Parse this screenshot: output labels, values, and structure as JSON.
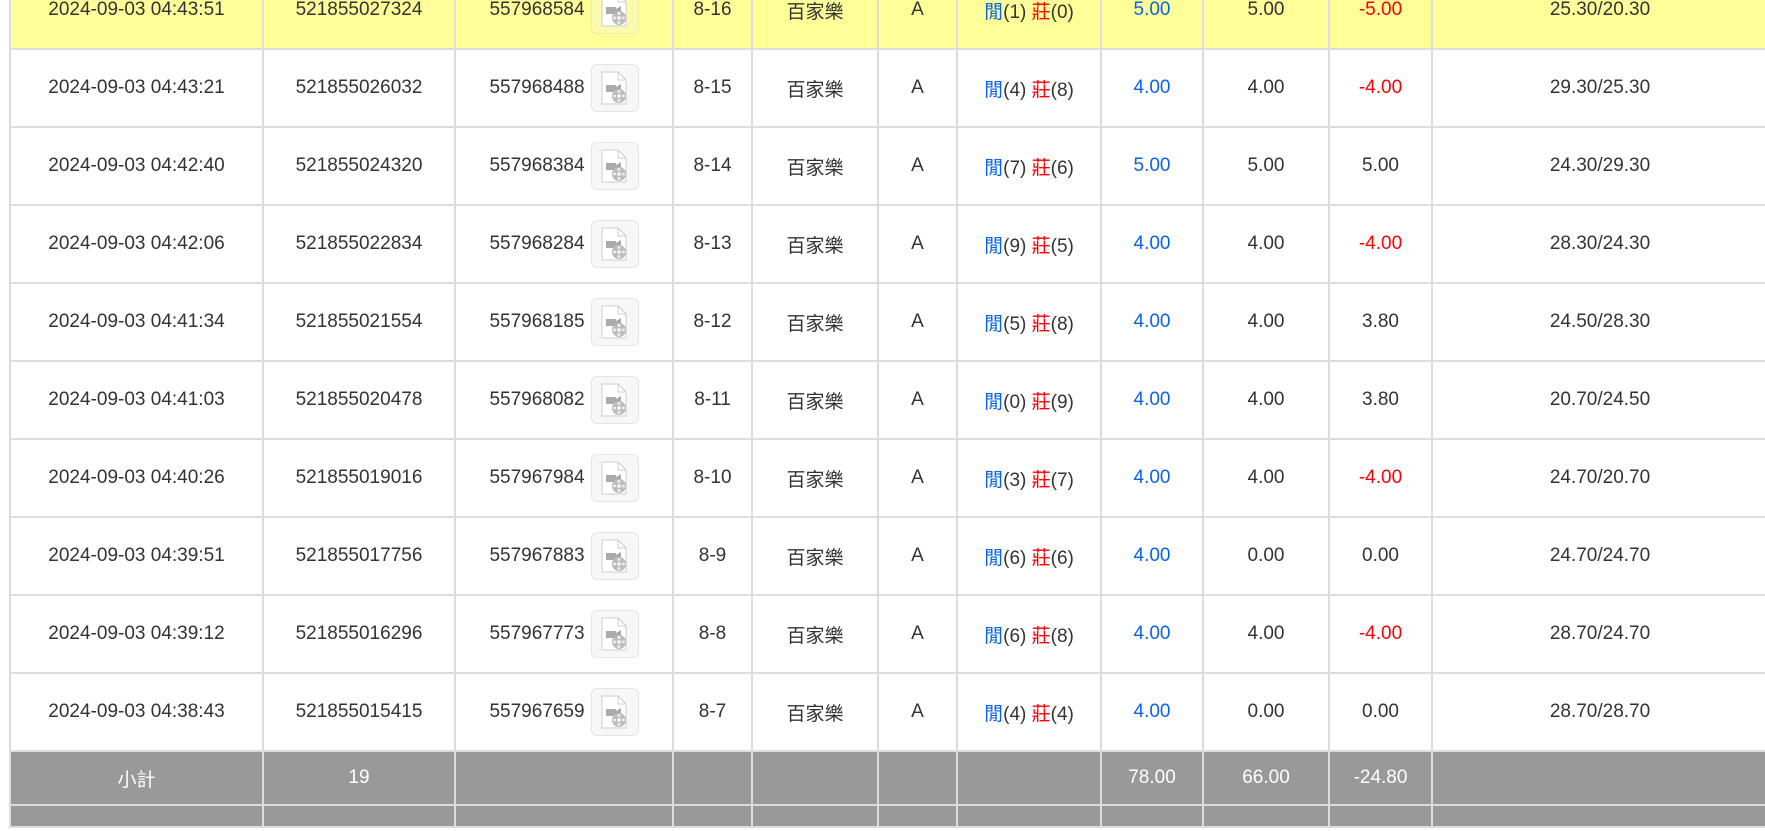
{
  "rows": [
    {
      "time": "2024-09-03 04:43:51",
      "bet_id": "521855027324",
      "round_id": "557968584",
      "table": "8-16",
      "game": "百家樂",
      "seat": "A",
      "player_label": "閒",
      "player_score": "(1)",
      "banker_label": "莊",
      "banker_score": "(0)",
      "bet": "5.00",
      "valid": "5.00",
      "win": "-5.00",
      "win_neg": true,
      "balance": "25.30/20.30",
      "highlight": true
    },
    {
      "time": "2024-09-03 04:43:21",
      "bet_id": "521855026032",
      "round_id": "557968488",
      "table": "8-15",
      "game": "百家樂",
      "seat": "A",
      "player_label": "閒",
      "player_score": "(4)",
      "banker_label": "莊",
      "banker_score": "(8)",
      "bet": "4.00",
      "valid": "4.00",
      "win": "-4.00",
      "win_neg": true,
      "balance": "29.30/25.30"
    },
    {
      "time": "2024-09-03 04:42:40",
      "bet_id": "521855024320",
      "round_id": "557968384",
      "table": "8-14",
      "game": "百家樂",
      "seat": "A",
      "player_label": "閒",
      "player_score": "(7)",
      "banker_label": "莊",
      "banker_score": "(6)",
      "bet": "5.00",
      "valid": "5.00",
      "win": "5.00",
      "win_neg": false,
      "balance": "24.30/29.30"
    },
    {
      "time": "2024-09-03 04:42:06",
      "bet_id": "521855022834",
      "round_id": "557968284",
      "table": "8-13",
      "game": "百家樂",
      "seat": "A",
      "player_label": "閒",
      "player_score": "(9)",
      "banker_label": "莊",
      "banker_score": "(5)",
      "bet": "4.00",
      "valid": "4.00",
      "win": "-4.00",
      "win_neg": true,
      "balance": "28.30/24.30"
    },
    {
      "time": "2024-09-03 04:41:34",
      "bet_id": "521855021554",
      "round_id": "557968185",
      "table": "8-12",
      "game": "百家樂",
      "seat": "A",
      "player_label": "閒",
      "player_score": "(5)",
      "banker_label": "莊",
      "banker_score": "(8)",
      "bet": "4.00",
      "valid": "4.00",
      "win": "3.80",
      "win_neg": false,
      "balance": "24.50/28.30"
    },
    {
      "time": "2024-09-03 04:41:03",
      "bet_id": "521855020478",
      "round_id": "557968082",
      "table": "8-11",
      "game": "百家樂",
      "seat": "A",
      "player_label": "閒",
      "player_score": "(0)",
      "banker_label": "莊",
      "banker_score": "(9)",
      "bet": "4.00",
      "valid": "4.00",
      "win": "3.80",
      "win_neg": false,
      "balance": "20.70/24.50"
    },
    {
      "time": "2024-09-03 04:40:26",
      "bet_id": "521855019016",
      "round_id": "557967984",
      "table": "8-10",
      "game": "百家樂",
      "seat": "A",
      "player_label": "閒",
      "player_score": "(3)",
      "banker_label": "莊",
      "banker_score": "(7)",
      "bet": "4.00",
      "valid": "4.00",
      "win": "-4.00",
      "win_neg": true,
      "balance": "24.70/20.70"
    },
    {
      "time": "2024-09-03 04:39:51",
      "bet_id": "521855017756",
      "round_id": "557967883",
      "table": "8-9",
      "game": "百家樂",
      "seat": "A",
      "player_label": "閒",
      "player_score": "(6)",
      "banker_label": "莊",
      "banker_score": "(6)",
      "bet": "4.00",
      "valid": "0.00",
      "win": "0.00",
      "win_neg": false,
      "balance": "24.70/24.70"
    },
    {
      "time": "2024-09-03 04:39:12",
      "bet_id": "521855016296",
      "round_id": "557967773",
      "table": "8-8",
      "game": "百家樂",
      "seat": "A",
      "player_label": "閒",
      "player_score": "(6)",
      "banker_label": "莊",
      "banker_score": "(8)",
      "bet": "4.00",
      "valid": "4.00",
      "win": "-4.00",
      "win_neg": true,
      "balance": "28.70/24.70"
    },
    {
      "time": "2024-09-03 04:38:43",
      "bet_id": "521855015415",
      "round_id": "557967659",
      "table": "8-7",
      "game": "百家樂",
      "seat": "A",
      "player_label": "閒",
      "player_score": "(4)",
      "banker_label": "莊",
      "banker_score": "(4)",
      "bet": "4.00",
      "valid": "0.00",
      "win": "0.00",
      "win_neg": false,
      "balance": "28.70/28.70"
    }
  ],
  "subtotal": {
    "label": "小計",
    "count": "19",
    "bet": "78.00",
    "valid": "66.00",
    "win": "-24.80"
  },
  "colors": {
    "highlight": "#ffff99",
    "player": "#0a63e6",
    "negative": "#ff0000",
    "subtotal_bg": "#999999"
  },
  "icons": {
    "replay": "video-file-icon"
  }
}
